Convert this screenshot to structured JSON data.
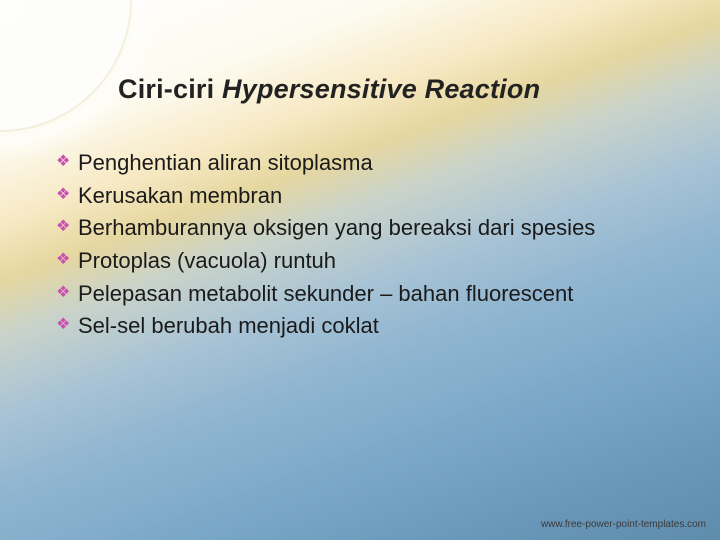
{
  "slide": {
    "title_plain": "Ciri-ciri ",
    "title_italic": "Hypersensitive Reaction",
    "title_fontsize_pt": 27,
    "title_color": "#222222",
    "bullets": {
      "glyph": "❖",
      "glyph_color": "#c94fb0",
      "text_color": "#1a1a1a",
      "text_fontsize_pt": 22,
      "items": [
        "Penghentian aliran sitoplasma",
        "Kerusakan membran",
        "Berhamburannya oksigen yang bereaksi dari spesies",
        "Protoplas (vacuola) runtuh",
        "Pelepasan metabolit sekunder – bahan fluorescent",
        "Sel-sel berubah menjadi coklat"
      ]
    }
  },
  "footer": {
    "text": "www.free-power-point-templates.com",
    "color": "#3a3a3a",
    "fontsize_pt": 10
  },
  "theme": {
    "background_gradient_stops": [
      "#fdfdfc",
      "#fdfbf0",
      "#f7e9c4",
      "#e6d7a0",
      "#c9d3ca",
      "#a8c3d5",
      "#8fb5d0",
      "#7ba8c8",
      "#6a98ba",
      "#5f8cab"
    ],
    "corner_arc_fill": "#fdfdfb",
    "aspect": "720x540"
  }
}
